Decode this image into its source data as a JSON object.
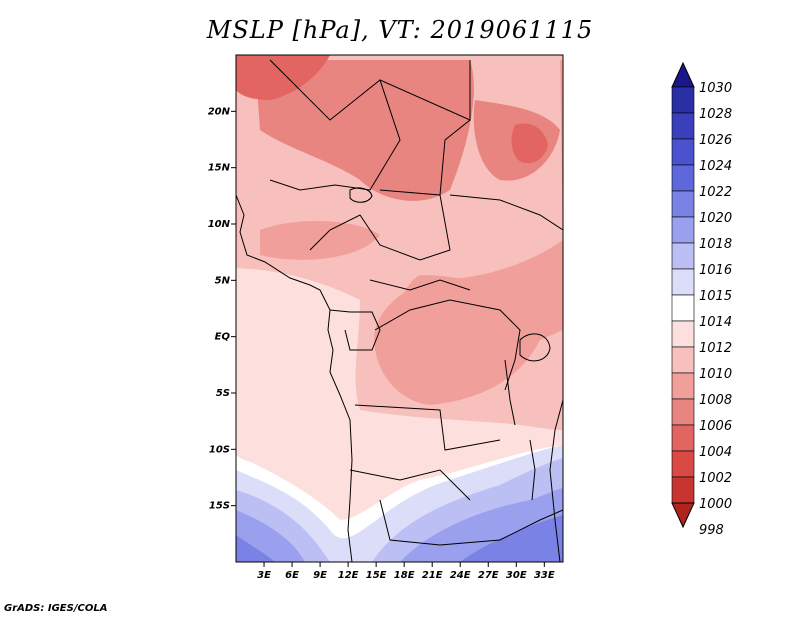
{
  "title": "MSLP [hPa], VT: 2019061115",
  "credit": "GrADS: IGES/COLA",
  "map": {
    "type": "filled-contour",
    "variable": "MSLP",
    "units": "hPa",
    "valid_time": "2019061115",
    "lon_range": [
      0,
      35
    ],
    "lat_range": [
      -20,
      25
    ],
    "lon_ticks": [
      "3E",
      "6E",
      "9E",
      "12E",
      "15E",
      "18E",
      "21E",
      "24E",
      "27E",
      "30E",
      "33E"
    ],
    "lat_ticks": [
      "20N",
      "15N",
      "10N",
      "5N",
      "EQ",
      "5S",
      "10S",
      "15S"
    ],
    "pressure_pattern": {
      "north_min_approx": 1004,
      "central_africa_approx": 1008,
      "gulf_of_guinea_approx": 1012,
      "southern_africa_max_approx": 1024
    }
  },
  "colorbar": {
    "levels": [
      "1030",
      "1028",
      "1026",
      "1024",
      "1022",
      "1020",
      "1018",
      "1016",
      "1015",
      "1014",
      "1012",
      "1010",
      "1008",
      "1006",
      "1004",
      "1002",
      "1000",
      "998"
    ],
    "colors": [
      "#1a1888",
      "#2b2fa6",
      "#3a40bc",
      "#4b52cf",
      "#5e67dc",
      "#7a82e6",
      "#9ba0ee",
      "#bcbff4",
      "#dcdef9",
      "#ffffff",
      "#fde0de",
      "#f8c0bc",
      "#f19f9b",
      "#e88580",
      "#e26561",
      "#d94a44",
      "#c83530",
      "#b02420"
    ]
  }
}
